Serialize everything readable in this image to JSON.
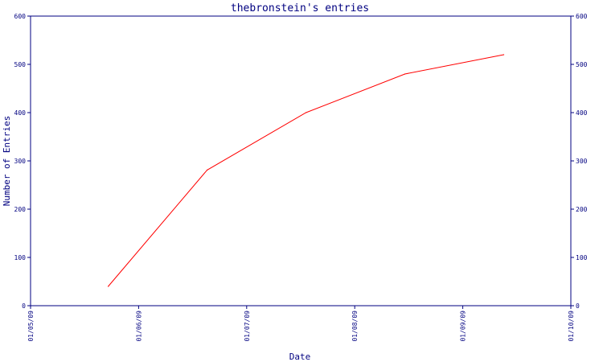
{
  "chart_data": {
    "type": "line",
    "title": "thebronstein's entries",
    "xlabel": "Date",
    "ylabel": "Number of Entries",
    "x_tick_labels": [
      "01/05/09",
      "01/06/09",
      "01/07/09",
      "01/08/09",
      "01/09/09",
      "01/10/09"
    ],
    "y_ticks": [
      0,
      100,
      200,
      300,
      400,
      500,
      600
    ],
    "ylim": [
      0,
      600
    ],
    "xlim": [
      "2009-05-01",
      "2009-10-01"
    ],
    "series": [
      {
        "color": "#ff0000",
        "points": [
          {
            "x": "2009-05-23",
            "y": 40
          },
          {
            "x": "2009-06-20",
            "y": 281
          },
          {
            "x": "2009-07-18",
            "y": 400
          },
          {
            "x": "2009-08-15",
            "y": 480
          },
          {
            "x": "2009-09-12",
            "y": 520
          }
        ]
      }
    ],
    "axis_color": "#000080",
    "right_axis_mirror": true,
    "grid": false
  }
}
